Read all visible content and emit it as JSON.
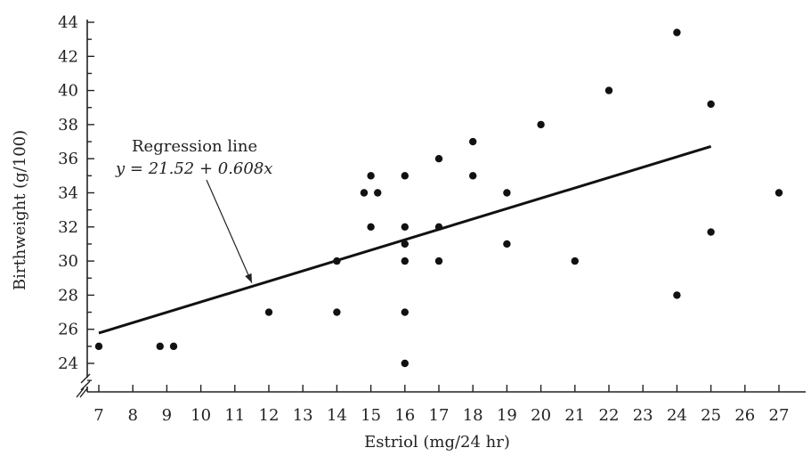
{
  "chart_data": {
    "type": "scatter",
    "title": "",
    "xlabel": "Estriol (mg/24 hr)",
    "ylabel": "Birthweight (g/100)",
    "xlim": [
      7,
      27
    ],
    "ylim": [
      24,
      44
    ],
    "x_ticks": [
      7,
      8,
      9,
      10,
      11,
      12,
      13,
      14,
      15,
      16,
      17,
      18,
      19,
      20,
      21,
      22,
      23,
      24,
      25,
      26,
      27
    ],
    "y_ticks": [
      24,
      26,
      28,
      30,
      32,
      34,
      36,
      38,
      40,
      42,
      44
    ],
    "axis_break": true,
    "grid": false,
    "points": [
      {
        "x": 7,
        "y": 25
      },
      {
        "x": 8.8,
        "y": 25
      },
      {
        "x": 9.2,
        "y": 25
      },
      {
        "x": 12,
        "y": 27
      },
      {
        "x": 14,
        "y": 27
      },
      {
        "x": 14,
        "y": 30
      },
      {
        "x": 14.8,
        "y": 34
      },
      {
        "x": 15,
        "y": 35
      },
      {
        "x": 15.2,
        "y": 34
      },
      {
        "x": 15,
        "y": 32
      },
      {
        "x": 16,
        "y": 35
      },
      {
        "x": 16,
        "y": 32
      },
      {
        "x": 16,
        "y": 31
      },
      {
        "x": 16,
        "y": 30
      },
      {
        "x": 16,
        "y": 27
      },
      {
        "x": 16,
        "y": 24
      },
      {
        "x": 17,
        "y": 36
      },
      {
        "x": 17,
        "y": 32
      },
      {
        "x": 17,
        "y": 30
      },
      {
        "x": 18,
        "y": 37
      },
      {
        "x": 18,
        "y": 35
      },
      {
        "x": 19,
        "y": 34
      },
      {
        "x": 19,
        "y": 31
      },
      {
        "x": 20,
        "y": 38
      },
      {
        "x": 21,
        "y": 30
      },
      {
        "x": 22,
        "y": 40
      },
      {
        "x": 24,
        "y": 43.4
      },
      {
        "x": 24,
        "y": 28
      },
      {
        "x": 25,
        "y": 39.2
      },
      {
        "x": 25,
        "y": 31.7
      },
      {
        "x": 27,
        "y": 34
      }
    ],
    "regression": {
      "intercept": 21.52,
      "slope": 0.608,
      "x_range": [
        7,
        25
      ],
      "label_title": "Regression line",
      "label_equation": "y = 21.52 + 0.608x",
      "arrow_target_x": 11.5
    }
  }
}
